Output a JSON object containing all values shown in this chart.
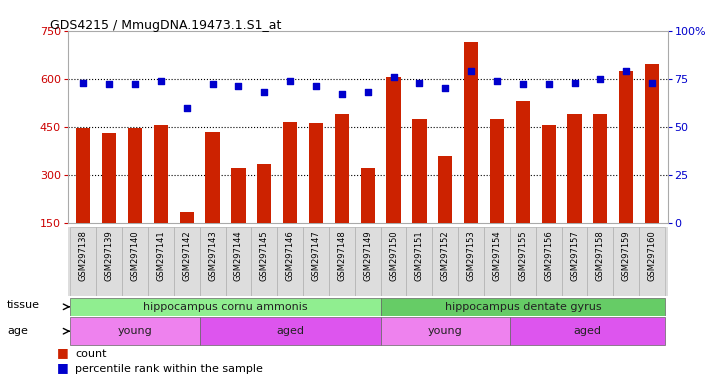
{
  "title": "GDS4215 / MmugDNA.19473.1.S1_at",
  "samples": [
    "GSM297138",
    "GSM297139",
    "GSM297140",
    "GSM297141",
    "GSM297142",
    "GSM297143",
    "GSM297144",
    "GSM297145",
    "GSM297146",
    "GSM297147",
    "GSM297148",
    "GSM297149",
    "GSM297150",
    "GSM297151",
    "GSM297152",
    "GSM297153",
    "GSM297154",
    "GSM297155",
    "GSM297156",
    "GSM297157",
    "GSM297158",
    "GSM297159",
    "GSM297160"
  ],
  "counts": [
    445,
    430,
    445,
    455,
    185,
    435,
    320,
    335,
    465,
    462,
    490,
    320,
    605,
    475,
    360,
    715,
    475,
    530,
    455,
    490,
    490,
    625,
    645
  ],
  "percentiles": [
    73,
    72,
    72,
    74,
    60,
    72,
    71,
    68,
    74,
    71,
    67,
    68,
    76,
    73,
    70,
    79,
    74,
    72,
    72,
    73,
    75,
    79,
    73
  ],
  "ylim_left": [
    150,
    750
  ],
  "ylim_right": [
    0,
    100
  ],
  "yticks_left": [
    150,
    300,
    450,
    600,
    750
  ],
  "yticks_right": [
    0,
    25,
    50,
    75,
    100
  ],
  "bar_color": "#cc2200",
  "dot_color": "#0000cc",
  "bg_color": "#ffffff",
  "plot_bg": "#ffffff",
  "tissue_groups": [
    {
      "label": "hippocampus cornu ammonis",
      "start": 0,
      "end": 12,
      "color": "#90ee90"
    },
    {
      "label": "hippocampus dentate gyrus",
      "start": 12,
      "end": 23,
      "color": "#66cc66"
    }
  ],
  "age_groups": [
    {
      "label": "young",
      "start": 0,
      "end": 5,
      "color": "#ee82ee"
    },
    {
      "label": "aged",
      "start": 5,
      "end": 12,
      "color": "#dd55ee"
    },
    {
      "label": "young",
      "start": 12,
      "end": 17,
      "color": "#ee82ee"
    },
    {
      "label": "aged",
      "start": 17,
      "end": 23,
      "color": "#dd55ee"
    }
  ],
  "tissue_label": "tissue",
  "age_label": "age",
  "legend_count": "count",
  "legend_percentile": "percentile rank within the sample",
  "left_axis_color": "#cc0000",
  "right_axis_color": "#0000cc"
}
